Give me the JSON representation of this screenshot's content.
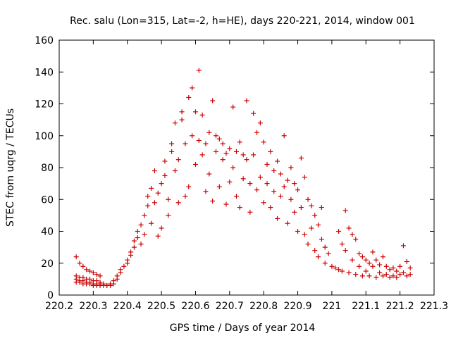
{
  "chart_data": {
    "type": "scatter",
    "title": "Rec. salu (Lon=315, Lat=-2, h=HE), days 220-221, 2014, window 001",
    "xlabel": "GPS time / Days of year 2014",
    "ylabel": "STEC from uqrg / TECUs",
    "xlim": [
      220.2,
      221.3
    ],
    "ylim": [
      0,
      160
    ],
    "xticks": [
      "220.2",
      "220.3",
      "220.4",
      "220.5",
      "220.6",
      "220.7",
      "220.8",
      "220.9",
      "221",
      "221.1",
      "221.2",
      "221.3"
    ],
    "yticks": [
      "0",
      "20",
      "40",
      "60",
      "80",
      "100",
      "120",
      "140",
      "160"
    ],
    "grid": false,
    "marker": "+",
    "color": "#cc0000",
    "series": [
      {
        "points": [
          [
            220.25,
            24
          ],
          [
            220.26,
            20
          ],
          [
            220.27,
            18
          ],
          [
            220.28,
            16
          ],
          [
            220.29,
            15
          ],
          [
            220.3,
            14
          ],
          [
            220.31,
            13
          ],
          [
            220.32,
            12
          ],
          [
            220.25,
            12
          ],
          [
            220.26,
            11
          ],
          [
            220.27,
            11
          ],
          [
            220.28,
            10
          ],
          [
            220.29,
            10
          ],
          [
            220.3,
            9
          ],
          [
            220.31,
            9
          ],
          [
            220.32,
            8
          ],
          [
            220.25,
            10
          ],
          [
            220.26,
            9
          ],
          [
            220.27,
            9
          ],
          [
            220.28,
            8
          ],
          [
            220.29,
            8
          ],
          [
            220.3,
            7
          ],
          [
            220.31,
            7
          ],
          [
            220.32,
            7
          ],
          [
            220.33,
            7
          ],
          [
            220.34,
            6
          ],
          [
            220.35,
            7
          ],
          [
            220.25,
            8
          ],
          [
            220.26,
            8
          ],
          [
            220.27,
            7
          ],
          [
            220.28,
            7
          ],
          [
            220.29,
            7
          ],
          [
            220.3,
            6
          ],
          [
            220.31,
            6
          ],
          [
            220.32,
            6
          ],
          [
            220.33,
            6
          ],
          [
            220.34,
            6
          ],
          [
            220.35,
            6
          ],
          [
            220.36,
            7
          ],
          [
            220.36,
            9
          ],
          [
            220.37,
            10
          ],
          [
            220.37,
            12
          ],
          [
            220.38,
            14
          ],
          [
            220.38,
            16
          ],
          [
            220.39,
            18
          ],
          [
            220.4,
            20
          ],
          [
            220.4,
            22
          ],
          [
            220.41,
            25
          ],
          [
            220.41,
            27
          ],
          [
            220.42,
            30
          ],
          [
            220.42,
            34
          ],
          [
            220.43,
            36
          ],
          [
            220.43,
            40
          ],
          [
            220.44,
            32
          ],
          [
            220.44,
            44
          ],
          [
            220.45,
            50
          ],
          [
            220.45,
            38
          ],
          [
            220.46,
            56
          ],
          [
            220.46,
            62
          ],
          [
            220.47,
            67
          ],
          [
            220.47,
            45
          ],
          [
            220.48,
            58
          ],
          [
            220.48,
            78
          ],
          [
            220.49,
            37
          ],
          [
            220.49,
            64
          ],
          [
            220.5,
            70
          ],
          [
            220.5,
            42
          ],
          [
            220.51,
            75
          ],
          [
            220.51,
            84
          ],
          [
            220.52,
            50
          ],
          [
            220.52,
            60
          ],
          [
            220.53,
            90
          ],
          [
            220.53,
            95
          ],
          [
            220.54,
            108
          ],
          [
            220.54,
            78
          ],
          [
            220.55,
            58
          ],
          [
            220.55,
            85
          ],
          [
            220.56,
            110
          ],
          [
            220.56,
            115
          ],
          [
            220.57,
            95
          ],
          [
            220.57,
            62
          ],
          [
            220.58,
            124
          ],
          [
            220.58,
            68
          ],
          [
            220.59,
            130
          ],
          [
            220.59,
            100
          ],
          [
            220.6,
            115
          ],
          [
            220.6,
            82
          ],
          [
            220.61,
            141
          ],
          [
            220.61,
            97
          ],
          [
            220.62,
            113
          ],
          [
            220.62,
            88
          ],
          [
            220.63,
            95
          ],
          [
            220.63,
            65
          ],
          [
            220.64,
            102
          ],
          [
            220.64,
            76
          ],
          [
            220.65,
            122
          ],
          [
            220.65,
            59
          ],
          [
            220.66,
            100
          ],
          [
            220.66,
            90
          ],
          [
            220.67,
            98
          ],
          [
            220.67,
            68
          ],
          [
            220.68,
            85
          ],
          [
            220.68,
            95
          ],
          [
            220.69,
            89
          ],
          [
            220.69,
            57
          ],
          [
            220.7,
            92
          ],
          [
            220.7,
            71
          ],
          [
            220.71,
            118
          ],
          [
            220.71,
            80
          ],
          [
            220.72,
            90
          ],
          [
            220.72,
            62
          ],
          [
            220.73,
            96
          ],
          [
            220.73,
            55
          ],
          [
            220.74,
            88
          ],
          [
            220.74,
            73
          ],
          [
            220.75,
            122
          ],
          [
            220.75,
            85
          ],
          [
            220.76,
            70
          ],
          [
            220.76,
            52
          ],
          [
            220.77,
            114
          ],
          [
            220.77,
            88
          ],
          [
            220.78,
            102
          ],
          [
            220.78,
            66
          ],
          [
            220.79,
            108
          ],
          [
            220.79,
            74
          ],
          [
            220.8,
            96
          ],
          [
            220.8,
            58
          ],
          [
            220.81,
            82
          ],
          [
            220.81,
            70
          ],
          [
            220.82,
            90
          ],
          [
            220.82,
            55
          ],
          [
            220.83,
            78
          ],
          [
            220.83,
            65
          ],
          [
            220.84,
            84
          ],
          [
            220.84,
            48
          ],
          [
            220.85,
            76
          ],
          [
            220.85,
            62
          ],
          [
            220.86,
            100
          ],
          [
            220.86,
            68
          ],
          [
            220.87,
            72
          ],
          [
            220.87,
            45
          ],
          [
            220.88,
            80
          ],
          [
            220.88,
            60
          ],
          [
            220.89,
            70
          ],
          [
            220.89,
            52
          ],
          [
            220.9,
            66
          ],
          [
            220.9,
            40
          ],
          [
            220.91,
            86
          ],
          [
            220.91,
            55
          ],
          [
            220.92,
            74
          ],
          [
            220.92,
            38
          ],
          [
            220.93,
            60
          ],
          [
            220.93,
            32
          ],
          [
            220.94,
            56
          ],
          [
            220.94,
            42
          ],
          [
            220.95,
            50
          ],
          [
            220.95,
            28
          ],
          [
            220.96,
            44
          ],
          [
            220.96,
            24
          ],
          [
            220.97,
            55
          ],
          [
            220.97,
            35
          ],
          [
            220.98,
            30
          ],
          [
            220.98,
            20
          ],
          [
            220.99,
            26
          ],
          [
            221.0,
            18
          ],
          [
            221.01,
            17
          ],
          [
            221.02,
            40
          ],
          [
            221.02,
            16
          ],
          [
            221.03,
            32
          ],
          [
            221.03,
            15
          ],
          [
            221.04,
            28
          ],
          [
            221.04,
            53
          ],
          [
            221.05,
            42
          ],
          [
            221.05,
            14
          ],
          [
            221.06,
            38
          ],
          [
            221.06,
            22
          ],
          [
            221.07,
            35
          ],
          [
            221.07,
            13
          ],
          [
            221.08,
            26
          ],
          [
            221.08,
            18
          ],
          [
            221.09,
            24
          ],
          [
            221.09,
            12
          ],
          [
            221.1,
            22
          ],
          [
            221.1,
            15
          ],
          [
            221.11,
            20
          ],
          [
            221.11,
            12
          ],
          [
            221.12,
            27
          ],
          [
            221.12,
            18
          ],
          [
            221.13,
            22
          ],
          [
            221.13,
            11
          ],
          [
            221.14,
            19
          ],
          [
            221.14,
            14
          ],
          [
            221.15,
            24
          ],
          [
            221.15,
            12
          ],
          [
            221.16,
            18
          ],
          [
            221.16,
            13
          ],
          [
            221.17,
            16
          ],
          [
            221.17,
            11
          ],
          [
            221.18,
            17
          ],
          [
            221.18,
            12
          ],
          [
            221.19,
            15
          ],
          [
            221.19,
            11
          ],
          [
            221.2,
            18
          ],
          [
            221.2,
            13
          ],
          [
            221.21,
            31
          ],
          [
            221.21,
            14
          ],
          [
            221.22,
            21
          ],
          [
            221.22,
            12
          ],
          [
            221.23,
            17
          ],
          [
            221.23,
            13
          ]
        ]
      }
    ]
  }
}
